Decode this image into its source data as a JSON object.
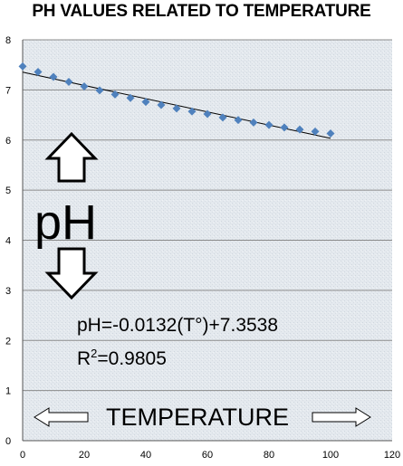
{
  "chart_data": {
    "type": "scatter",
    "title": "PH VALUES RELATED TO TEMPERATURE",
    "xlim": [
      0,
      120
    ],
    "ylim": [
      0,
      8
    ],
    "xticks": [
      0,
      20,
      40,
      60,
      80,
      100,
      120
    ],
    "yticks": [
      0,
      1,
      2,
      3,
      4,
      5,
      6,
      7,
      8
    ],
    "grid": "horizontal",
    "series": [
      {
        "color": "#4f81bd",
        "marker": "diamond",
        "x": [
          0,
          5,
          10,
          15,
          20,
          25,
          30,
          35,
          40,
          45,
          50,
          55,
          60,
          65,
          70,
          75,
          80,
          85,
          90,
          95,
          100
        ],
        "y": [
          7.47,
          7.36,
          7.26,
          7.16,
          7.07,
          6.99,
          6.91,
          6.84,
          6.76,
          6.7,
          6.63,
          6.57,
          6.52,
          6.45,
          6.4,
          6.35,
          6.3,
          6.25,
          6.21,
          6.17,
          6.13
        ]
      }
    ],
    "trendline": {
      "slope": -0.0132,
      "intercept": 7.3538,
      "x_range": [
        0,
        100
      ],
      "color": "#000000"
    },
    "annotations": {
      "equation": "pH=-0.0132(T°)+7.3538",
      "r2_prefix": "R",
      "r2_sup": "2",
      "r2_value": "=0.9805",
      "ph_label": "pH",
      "x_label": "TEMPERATURE"
    }
  }
}
